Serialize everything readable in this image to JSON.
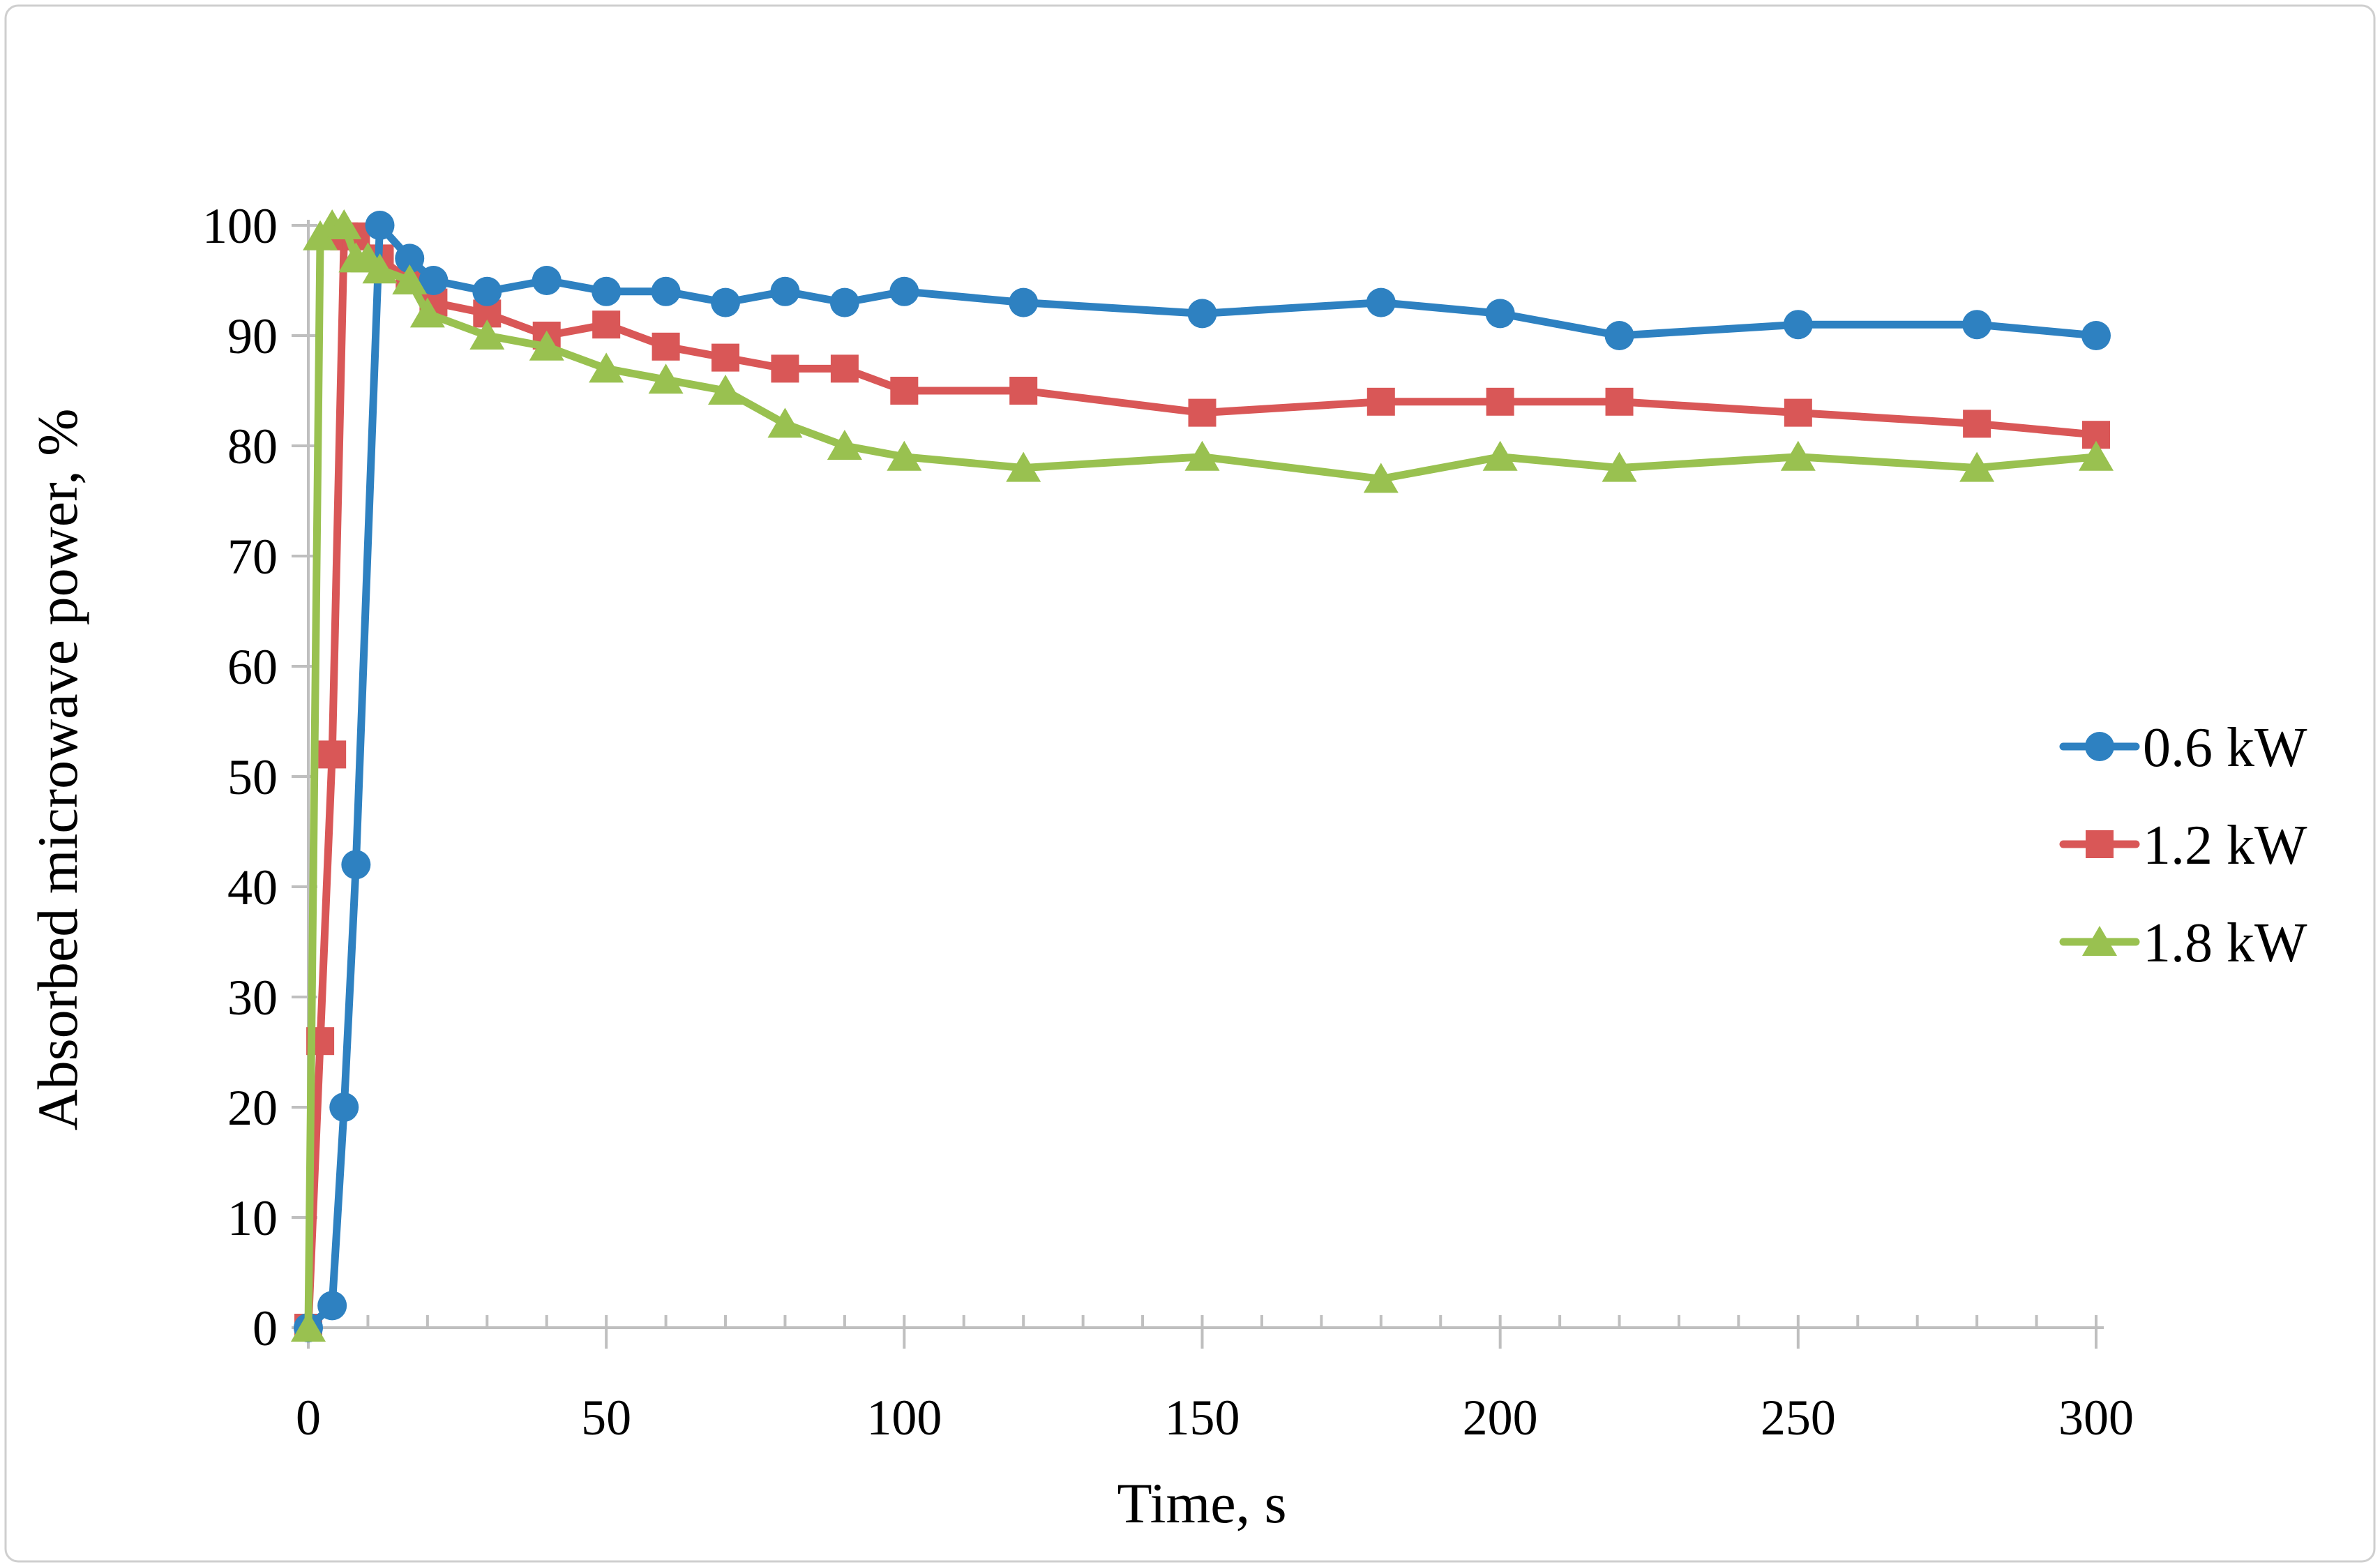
{
  "figure": {
    "background": "#ffffff",
    "border_color": "#cfcfcf",
    "axis_color": "#bfbfbf"
  },
  "chart_data": {
    "type": "line",
    "title": "",
    "xlabel": "Time, s",
    "ylabel": "Absorbed microwave power, %",
    "xlim": [
      0,
      300
    ],
    "ylim": [
      0,
      100
    ],
    "x_major_ticks": [
      0,
      50,
      100,
      150,
      200,
      250,
      300
    ],
    "x_minor_step": 10,
    "y_major_ticks": [
      0,
      10,
      20,
      30,
      40,
      50,
      60,
      70,
      80,
      90,
      100
    ],
    "grid": "off",
    "legend_position": "right-middle",
    "series": [
      {
        "name": "1.2 kW",
        "color": "#d95757",
        "marker": "square",
        "points": [
          [
            0,
            0
          ],
          [
            2,
            26
          ],
          [
            4,
            52
          ],
          [
            6,
            99
          ],
          [
            8,
            99
          ],
          [
            12,
            97
          ],
          [
            17,
            95
          ],
          [
            21,
            93
          ],
          [
            30,
            92
          ],
          [
            40,
            90
          ],
          [
            50,
            91
          ],
          [
            60,
            89
          ],
          [
            70,
            88
          ],
          [
            80,
            87
          ],
          [
            90,
            87
          ],
          [
            100,
            85
          ],
          [
            120,
            85
          ],
          [
            150,
            83
          ],
          [
            180,
            84
          ],
          [
            200,
            84
          ],
          [
            220,
            84
          ],
          [
            250,
            83
          ],
          [
            280,
            82
          ],
          [
            300,
            81
          ]
        ]
      },
      {
        "name": "0.6 kW",
        "color": "#2e81c1",
        "marker": "circle",
        "points": [
          [
            0,
            0
          ],
          [
            4,
            2
          ],
          [
            6,
            20
          ],
          [
            8,
            42
          ],
          [
            12,
            100
          ],
          [
            17,
            97
          ],
          [
            21,
            95
          ],
          [
            30,
            94
          ],
          [
            40,
            95
          ],
          [
            50,
            94
          ],
          [
            60,
            94
          ],
          [
            70,
            93
          ],
          [
            80,
            94
          ],
          [
            90,
            93
          ],
          [
            100,
            94
          ],
          [
            120,
            93
          ],
          [
            150,
            92
          ],
          [
            180,
            93
          ],
          [
            200,
            92
          ],
          [
            220,
            90
          ],
          [
            250,
            91
          ],
          [
            280,
            91
          ],
          [
            300,
            90
          ]
        ]
      },
      {
        "name": "1.8 kW",
        "color": "#99c150",
        "marker": "triangle",
        "points": [
          [
            0,
            0
          ],
          [
            2,
            99
          ],
          [
            4,
            100
          ],
          [
            6,
            100
          ],
          [
            8,
            97
          ],
          [
            10,
            97
          ],
          [
            12,
            96
          ],
          [
            17,
            95
          ],
          [
            20,
            92
          ],
          [
            30,
            90
          ],
          [
            40,
            89
          ],
          [
            50,
            87
          ],
          [
            60,
            86
          ],
          [
            70,
            85
          ],
          [
            80,
            82
          ],
          [
            90,
            80
          ],
          [
            100,
            79
          ],
          [
            120,
            78
          ],
          [
            150,
            79
          ],
          [
            180,
            77
          ],
          [
            200,
            79
          ],
          [
            220,
            78
          ],
          [
            250,
            79
          ],
          [
            280,
            78
          ],
          [
            300,
            79
          ]
        ]
      }
    ],
    "legend_order": [
      "0.6 kW",
      "1.2 kW",
      "1.8 kW"
    ]
  }
}
